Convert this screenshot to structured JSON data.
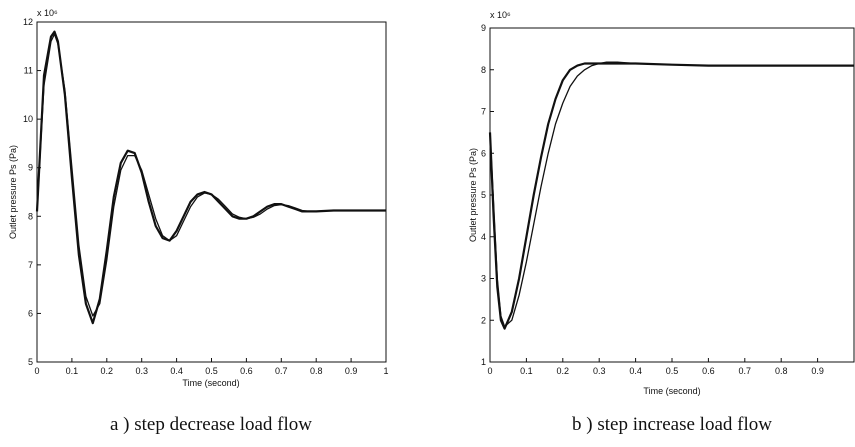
{
  "chart_data": [
    {
      "type": "line",
      "caption": "a ) step decrease load flow",
      "xlabel": "Time (second)",
      "ylabel": "Outlet pressure Ps (Pa)",
      "y_exponent": "x 10⁶",
      "xlim": [
        0,
        1
      ],
      "ylim": [
        5,
        12
      ],
      "xticks": [
        "0",
        "0.1",
        "0.2",
        "0.3",
        "0.4",
        "0.5",
        "0.6",
        "0.7",
        "0.8",
        "0.9",
        "1"
      ],
      "yticks": [
        "5",
        "6",
        "7",
        "8",
        "9",
        "10",
        "11",
        "12"
      ],
      "grid": false,
      "series": [
        {
          "x": [
            0,
            0.02,
            0.04,
            0.05,
            0.06,
            0.08,
            0.1,
            0.12,
            0.14,
            0.16,
            0.18,
            0.2,
            0.22,
            0.24,
            0.26,
            0.28,
            0.3,
            0.32,
            0.34,
            0.36,
            0.38,
            0.4,
            0.42,
            0.44,
            0.46,
            0.48,
            0.5,
            0.52,
            0.54,
            0.56,
            0.58,
            0.6,
            0.62,
            0.64,
            0.66,
            0.68,
            0.7,
            0.72,
            0.74,
            0.76,
            0.78,
            0.8,
            0.85,
            0.9,
            0.95,
            1.0
          ],
          "y": [
            8.1,
            10.9,
            11.7,
            11.8,
            11.6,
            10.5,
            8.8,
            7.2,
            6.2,
            5.8,
            6.3,
            7.3,
            8.4,
            9.1,
            9.35,
            9.3,
            8.9,
            8.3,
            7.8,
            7.55,
            7.5,
            7.7,
            8.0,
            8.3,
            8.45,
            8.5,
            8.45,
            8.3,
            8.15,
            8.0,
            7.95,
            7.95,
            8.0,
            8.1,
            8.2,
            8.25,
            8.25,
            8.2,
            8.15,
            8.1,
            8.1,
            8.1,
            8.12,
            8.12,
            8.12,
            8.12
          ]
        },
        {
          "x": [
            0,
            0.02,
            0.04,
            0.05,
            0.06,
            0.08,
            0.1,
            0.12,
            0.14,
            0.16,
            0.18,
            0.2,
            0.22,
            0.24,
            0.26,
            0.28,
            0.3,
            0.32,
            0.34,
            0.36,
            0.38,
            0.4,
            0.42,
            0.44,
            0.46,
            0.48,
            0.5,
            0.52,
            0.54,
            0.56,
            0.58,
            0.6,
            0.62,
            0.64,
            0.66,
            0.68,
            0.7,
            0.72,
            0.74,
            0.76,
            0.78,
            0.8,
            0.85,
            0.9,
            0.95,
            1.0
          ],
          "y": [
            8.1,
            10.7,
            11.6,
            11.75,
            11.55,
            10.6,
            9.0,
            7.4,
            6.35,
            5.95,
            6.2,
            7.1,
            8.2,
            8.95,
            9.25,
            9.25,
            8.95,
            8.45,
            7.95,
            7.6,
            7.5,
            7.6,
            7.9,
            8.2,
            8.4,
            8.48,
            8.45,
            8.35,
            8.2,
            8.05,
            7.98,
            7.95,
            7.98,
            8.05,
            8.15,
            8.22,
            8.24,
            8.22,
            8.17,
            8.12,
            8.1,
            8.1,
            8.12,
            8.12,
            8.12,
            8.12
          ]
        }
      ]
    },
    {
      "type": "line",
      "caption": "b ) step increase load flow",
      "xlabel": "Time (second)",
      "ylabel": "Outlet pressure Ps (Pa)",
      "y_exponent": "x 10⁶",
      "xlim": [
        0,
        1
      ],
      "ylim": [
        1,
        9
      ],
      "xticks": [
        "0",
        "0.1",
        "0.2",
        "0.3",
        "0.4",
        "0.5",
        "0.6",
        "0.7",
        "0.8",
        "0.9"
      ],
      "yticks": [
        "1",
        "2",
        "3",
        "4",
        "5",
        "6",
        "7",
        "8",
        "9"
      ],
      "grid": false,
      "series": [
        {
          "x": [
            0,
            0.01,
            0.02,
            0.03,
            0.04,
            0.06,
            0.08,
            0.1,
            0.12,
            0.14,
            0.16,
            0.18,
            0.2,
            0.22,
            0.24,
            0.26,
            0.28,
            0.3,
            0.32,
            0.35,
            0.4,
            0.5,
            0.6,
            0.7,
            0.8,
            0.9,
            1.0
          ],
          "y": [
            6.5,
            4.5,
            2.8,
            2.0,
            1.8,
            2.2,
            3.0,
            4.0,
            5.0,
            5.9,
            6.7,
            7.3,
            7.75,
            8.0,
            8.1,
            8.15,
            8.15,
            8.15,
            8.15,
            8.15,
            8.15,
            8.12,
            8.1,
            8.1,
            8.1,
            8.1,
            8.1
          ]
        },
        {
          "x": [
            0,
            0.01,
            0.02,
            0.03,
            0.04,
            0.06,
            0.08,
            0.1,
            0.12,
            0.14,
            0.16,
            0.18,
            0.2,
            0.22,
            0.24,
            0.26,
            0.28,
            0.3,
            0.32,
            0.35,
            0.4,
            0.5,
            0.6,
            0.7,
            0.8,
            0.9,
            1.0
          ],
          "y": [
            6.5,
            4.8,
            3.0,
            2.1,
            1.85,
            2.0,
            2.6,
            3.4,
            4.3,
            5.2,
            6.0,
            6.7,
            7.2,
            7.6,
            7.85,
            8.0,
            8.1,
            8.15,
            8.18,
            8.18,
            8.15,
            8.12,
            8.1,
            8.1,
            8.1,
            8.1,
            8.1
          ]
        }
      ]
    }
  ]
}
